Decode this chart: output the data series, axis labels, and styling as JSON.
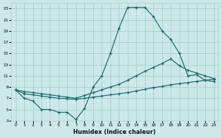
{
  "xlabel": "Humidex (Indice chaleur)",
  "background_color": "#cce8ea",
  "grid_color": "#aacccc",
  "line_color": "#1a6b6b",
  "xlim": [
    -0.5,
    23.5
  ],
  "ylim": [
    3,
    24
  ],
  "xticks": [
    0,
    1,
    2,
    3,
    4,
    5,
    6,
    7,
    8,
    9,
    10,
    11,
    12,
    13,
    14,
    15,
    16,
    17,
    18,
    19,
    20,
    21,
    22,
    23
  ],
  "yticks": [
    3,
    5,
    7,
    9,
    11,
    13,
    15,
    17,
    19,
    21,
    23
  ],
  "series": [
    {
      "x": [
        0,
        1,
        2,
        3,
        4,
        5,
        6,
        7,
        8,
        9,
        10,
        11,
        12,
        13,
        14,
        15,
        16,
        17,
        18,
        19,
        20,
        21,
        22,
        23
      ],
      "y": [
        8.5,
        7.0,
        6.5,
        5.0,
        5.0,
        4.5,
        4.5,
        3.2,
        5.2,
        9.0,
        11.0,
        15.0,
        19.5,
        23.2,
        23.2,
        23.2,
        21.5,
        19.0,
        17.5,
        15.0,
        11.0,
        11.2,
        10.2,
        10.0
      ]
    },
    {
      "x": [
        0,
        1,
        2,
        3,
        4,
        5,
        6,
        7,
        8,
        9,
        10,
        11,
        12,
        13,
        14,
        15,
        16,
        17,
        18,
        19,
        20,
        21,
        22,
        23
      ],
      "y": [
        8.5,
        7.8,
        7.6,
        7.4,
        7.2,
        7.0,
        6.9,
        6.8,
        7.0,
        7.2,
        7.4,
        7.6,
        7.8,
        8.0,
        8.3,
        8.6,
        8.9,
        9.1,
        9.4,
        9.6,
        9.8,
        10.0,
        10.2,
        10.4
      ]
    },
    {
      "x": [
        0,
        1,
        2,
        3,
        4,
        5,
        6,
        7,
        8,
        9,
        10,
        11,
        12,
        13,
        14,
        15,
        16,
        17,
        18,
        19,
        20,
        21,
        22,
        23
      ],
      "y": [
        8.5,
        8.2,
        8.0,
        7.8,
        7.6,
        7.4,
        7.2,
        7.0,
        7.5,
        8.0,
        8.5,
        9.0,
        9.5,
        10.2,
        11.0,
        11.8,
        12.5,
        13.2,
        14.0,
        12.8,
        12.0,
        11.5,
        11.0,
        10.5
      ]
    }
  ]
}
